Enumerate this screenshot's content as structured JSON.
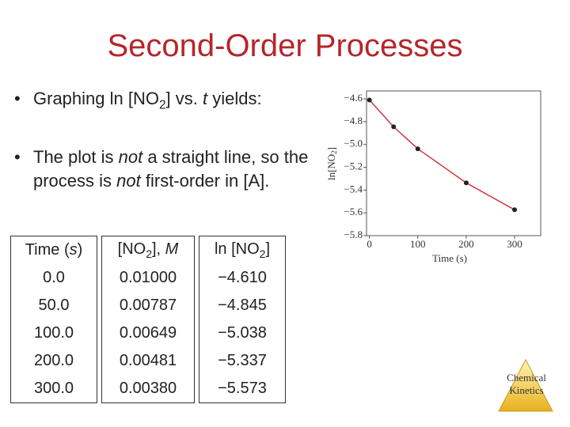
{
  "title": "Second-Order Processes",
  "bullets": [
    [
      "Graphing ln [NO",
      "2",
      "] vs. ",
      "t",
      " yields:"
    ],
    [
      "The plot is ",
      "not",
      " a straight line, so the process is ",
      "not",
      " first-order in [A]."
    ]
  ],
  "table": {
    "headers": [
      [
        "Time (",
        "s",
        ")"
      ],
      [
        "[NO",
        "2",
        "], ",
        "M"
      ],
      [
        "ln [NO",
        "2",
        "]"
      ]
    ],
    "rows": [
      [
        "0.0",
        "0.01000",
        "−4.610"
      ],
      [
        "50.0",
        "0.00787",
        "−4.845"
      ],
      [
        "100.0",
        "0.00649",
        "−5.038"
      ],
      [
        "200.0",
        "0.00481",
        "−5.337"
      ],
      [
        "300.0",
        "0.00380",
        "−5.573"
      ]
    ]
  },
  "logo": [
    "Chemical",
    "Kinetics"
  ],
  "chart_data": {
    "type": "line",
    "xlabel": "Time (s)",
    "ylabel": [
      "ln[NO",
      "2",
      "]"
    ],
    "x": [
      0,
      50,
      100,
      200,
      300
    ],
    "values": [
      -4.61,
      -4.845,
      -5.038,
      -5.337,
      -5.573
    ],
    "color": "#d0353f",
    "marker_color": "#222222",
    "xlim": [
      -6,
      354
    ],
    "ylim": [
      -5.8,
      -4.53
    ],
    "xticks": [
      0,
      100,
      200,
      300
    ],
    "yticks": [
      {
        "value": -4.6,
        "label": "−4.6"
      },
      {
        "value": -4.8,
        "label": "−4.8"
      },
      {
        "value": -5.0,
        "label": "−5.0"
      },
      {
        "value": -5.2,
        "label": "−5.2"
      },
      {
        "value": -5.4,
        "label": "−5.4"
      },
      {
        "value": -5.6,
        "label": "−5.6"
      },
      {
        "value": -5.8,
        "label": "−5.8"
      }
    ]
  }
}
